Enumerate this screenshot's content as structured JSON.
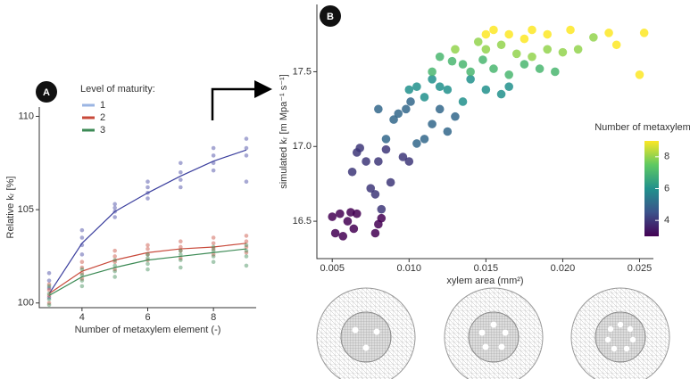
{
  "chart_data": [
    {
      "type": "scatter",
      "panel": "A",
      "y_label": "Relative kᵣ [%]",
      "x_label": "Number of metaxylem element (-)",
      "legend_title": "Level of maturity:",
      "xlim": [
        2.7,
        9.3
      ],
      "xticks": [
        4,
        6,
        8
      ],
      "ylim": [
        99.75,
        110.5
      ],
      "yticks": [
        100,
        105,
        110
      ],
      "fit_x": [
        3,
        4,
        5,
        6,
        7,
        8,
        9
      ],
      "series": [
        {
          "name": "1",
          "color": "#3b3f9e",
          "legend_color": "#9bb5e3",
          "x": [
            3,
            3,
            3,
            3,
            4,
            4,
            4,
            4,
            5,
            5,
            5,
            5,
            6,
            6,
            6,
            6,
            7,
            7,
            7,
            7,
            8,
            8,
            8,
            8,
            9,
            9,
            9,
            9
          ],
          "values": [
            100.3,
            100.8,
            101.2,
            101.6,
            102.6,
            103.1,
            103.5,
            103.9,
            104.6,
            104.9,
            105.1,
            105.3,
            105.6,
            105.9,
            106.2,
            106.5,
            106.2,
            106.6,
            107.0,
            107.5,
            107.1,
            107.5,
            107.9,
            108.3,
            106.5,
            107.9,
            108.3,
            108.8
          ],
          "fit": [
            100.5,
            103.2,
            104.9,
            105.9,
            106.8,
            107.6,
            108.2
          ]
        },
        {
          "name": "2",
          "color": "#c8493a",
          "legend_color": "#c8493a",
          "x": [
            3,
            3,
            3,
            3,
            4,
            4,
            4,
            4,
            5,
            5,
            5,
            5,
            6,
            6,
            6,
            6,
            7,
            7,
            7,
            7,
            8,
            8,
            8,
            8,
            9,
            9,
            9,
            9
          ],
          "values": [
            100.0,
            100.4,
            100.7,
            101.0,
            101.3,
            101.6,
            101.9,
            102.2,
            101.8,
            102.2,
            102.5,
            102.8,
            102.3,
            102.6,
            102.9,
            103.1,
            102.4,
            102.8,
            103.0,
            103.3,
            102.6,
            102.9,
            103.2,
            103.5,
            102.7,
            103.0,
            103.3,
            103.6
          ],
          "fit": [
            100.5,
            101.7,
            102.3,
            102.7,
            102.9,
            103.0,
            103.2
          ]
        },
        {
          "name": "3",
          "color": "#3c8a55",
          "legend_color": "#3c8a55",
          "x": [
            3,
            3,
            3,
            3,
            4,
            4,
            4,
            4,
            5,
            5,
            5,
            5,
            6,
            6,
            6,
            6,
            7,
            7,
            7,
            7,
            8,
            8,
            8,
            8,
            9,
            9,
            9,
            9
          ],
          "values": [
            99.9,
            100.2,
            100.5,
            100.9,
            100.9,
            101.2,
            101.5,
            101.8,
            101.4,
            101.7,
            102.0,
            102.3,
            101.8,
            102.1,
            102.4,
            102.6,
            101.9,
            102.3,
            102.6,
            102.8,
            102.2,
            102.5,
            102.8,
            103.0,
            102.0,
            102.5,
            102.8,
            103.1
          ],
          "fit": [
            100.4,
            101.4,
            101.9,
            102.3,
            102.5,
            102.7,
            102.9
          ]
        }
      ]
    },
    {
      "type": "colorscatter",
      "panel": "B",
      "y_label": "simulated kᵣ [m Mpa⁻¹ s⁻¹]",
      "x_label": "xylem area (mm²)",
      "xlim": [
        0.004,
        0.0259
      ],
      "xticks": [
        0.005,
        {
          "value": 0.01,
          "label": "0.010"
        },
        0.015,
        {
          "value": 0.02,
          "label": "0.020"
        },
        0.025
      ],
      "ylim": [
        16.25,
        17.95
      ],
      "yticks": [
        16.5,
        {
          "value": 17,
          "label": "17.0"
        },
        17.5
      ],
      "colormap": "viridis",
      "colorbar_title": "Number of metaxylem",
      "colorbar_lim": [
        3,
        9
      ],
      "colorbar_ticks": [
        4,
        6,
        8
      ],
      "x": [
        0.005,
        0.0052,
        0.0055,
        0.0057,
        0.006,
        0.0062,
        0.0064,
        0.0066,
        0.0078,
        0.008,
        0.0082,
        0.0063,
        0.0066,
        0.0068,
        0.0072,
        0.0075,
        0.0078,
        0.008,
        0.0082,
        0.0085,
        0.0088,
        0.0096,
        0.01,
        0.008,
        0.0085,
        0.009,
        0.0093,
        0.0098,
        0.0101,
        0.0105,
        0.011,
        0.0115,
        0.012,
        0.0125,
        0.013,
        0.01,
        0.0105,
        0.011,
        0.0115,
        0.012,
        0.0125,
        0.0135,
        0.014,
        0.015,
        0.016,
        0.0165,
        0.0115,
        0.012,
        0.0128,
        0.0135,
        0.014,
        0.0148,
        0.0155,
        0.0165,
        0.0175,
        0.0185,
        0.0195,
        0.013,
        0.0145,
        0.015,
        0.016,
        0.017,
        0.018,
        0.019,
        0.02,
        0.021,
        0.022,
        0.015,
        0.0155,
        0.0165,
        0.0175,
        0.018,
        0.019,
        0.0205,
        0.023,
        0.0235,
        0.025,
        0.0253
      ],
      "values": [
        16.53,
        16.42,
        16.55,
        16.4,
        16.5,
        16.56,
        16.45,
        16.55,
        16.42,
        16.48,
        16.52,
        16.83,
        16.96,
        16.99,
        16.9,
        16.72,
        16.68,
        16.9,
        16.58,
        16.98,
        16.76,
        16.93,
        16.9,
        17.25,
        17.05,
        17.18,
        17.22,
        17.25,
        17.3,
        17.02,
        17.05,
        17.15,
        17.25,
        17.1,
        17.2,
        17.38,
        17.4,
        17.33,
        17.45,
        17.4,
        17.38,
        17.3,
        17.45,
        17.38,
        17.35,
        17.4,
        17.5,
        17.6,
        17.57,
        17.55,
        17.5,
        17.58,
        17.52,
        17.48,
        17.55,
        17.52,
        17.5,
        17.65,
        17.7,
        17.65,
        17.68,
        17.62,
        17.6,
        17.65,
        17.63,
        17.65,
        17.73,
        17.75,
        17.78,
        17.75,
        17.72,
        17.78,
        17.75,
        17.78,
        17.76,
        17.68,
        17.48,
        17.76
      ],
      "color_values": [
        3,
        3,
        3,
        3,
        3,
        3,
        3,
        3,
        3,
        3,
        3,
        4,
        4,
        4,
        4,
        4,
        4,
        4,
        4,
        4,
        4,
        4,
        4,
        5,
        5,
        5,
        5,
        5,
        5,
        5,
        5,
        5,
        5,
        5,
        5,
        6,
        6,
        6,
        6,
        6,
        6,
        6,
        6,
        6,
        6,
        6,
        7,
        7,
        7,
        7,
        7,
        7,
        7,
        7,
        7,
        7,
        7,
        8,
        8,
        8,
        8,
        8,
        8,
        8,
        8,
        8,
        8,
        9,
        9,
        9,
        9,
        9,
        9,
        9,
        9,
        9,
        9,
        9
      ]
    }
  ]
}
